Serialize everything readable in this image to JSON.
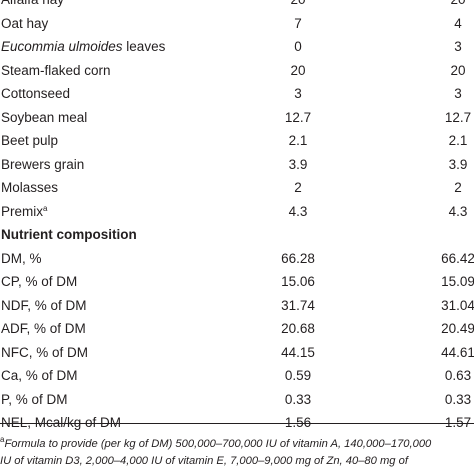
{
  "ingredients": [
    {
      "label": "Alfalfa hay",
      "v1": "20",
      "v2": "20"
    },
    {
      "label": "Oat hay",
      "v1": "7",
      "v2": "4"
    },
    {
      "label_italic": "Eucommia ulmoides",
      "label_rest": " leaves",
      "v1": "0",
      "v2": "3"
    },
    {
      "label": "Steam-flaked corn",
      "v1": "20",
      "v2": "20"
    },
    {
      "label": "Cottonseed",
      "v1": "3",
      "v2": "3"
    },
    {
      "label": "Soybean meal",
      "v1": "12.7",
      "v2": "12.7"
    },
    {
      "label": "Beet pulp",
      "v1": "2.1",
      "v2": "2.1"
    },
    {
      "label": "Brewers grain",
      "v1": "3.9",
      "v2": "3.9"
    },
    {
      "label": "Molasses",
      "v1": "2",
      "v2": "2"
    },
    {
      "label": "Premix",
      "sup": "a",
      "v1": "4.3",
      "v2": "4.3"
    }
  ],
  "nutrient_header": "Nutrient composition",
  "nutrients": [
    {
      "label": "DM, %",
      "v1": "66.28",
      "v2": "66.42"
    },
    {
      "label": "CP, % of DM",
      "v1": "15.06",
      "v2": "15.09"
    },
    {
      "label": "NDF, % of DM",
      "v1": "31.74",
      "v2": "31.04"
    },
    {
      "label": "ADF, % of DM",
      "v1": "20.68",
      "v2": "20.49"
    },
    {
      "label": "NFC, % of DM",
      "v1": "44.15",
      "v2": "44.61"
    },
    {
      "label": "Ca, % of DM",
      "v1": "0.59",
      "v2": "0.63"
    },
    {
      "label": "P, % of DM",
      "v1": "0.33",
      "v2": "0.33"
    },
    {
      "label": "NEL, Mcal/kg of DM",
      "v1": "1.56",
      "v2": "1.57"
    }
  ],
  "footnote": {
    "marker": "a",
    "line1": "Formula to provide (per kg of DM) 500,000–700,000 IU of vitamin A, 140,000–170,000",
    "line2": "IU of vitamin D3, 2,000–4,000 IU of vitamin E, 7,000–9,000 mg of Zn, 40–80 mg of"
  }
}
